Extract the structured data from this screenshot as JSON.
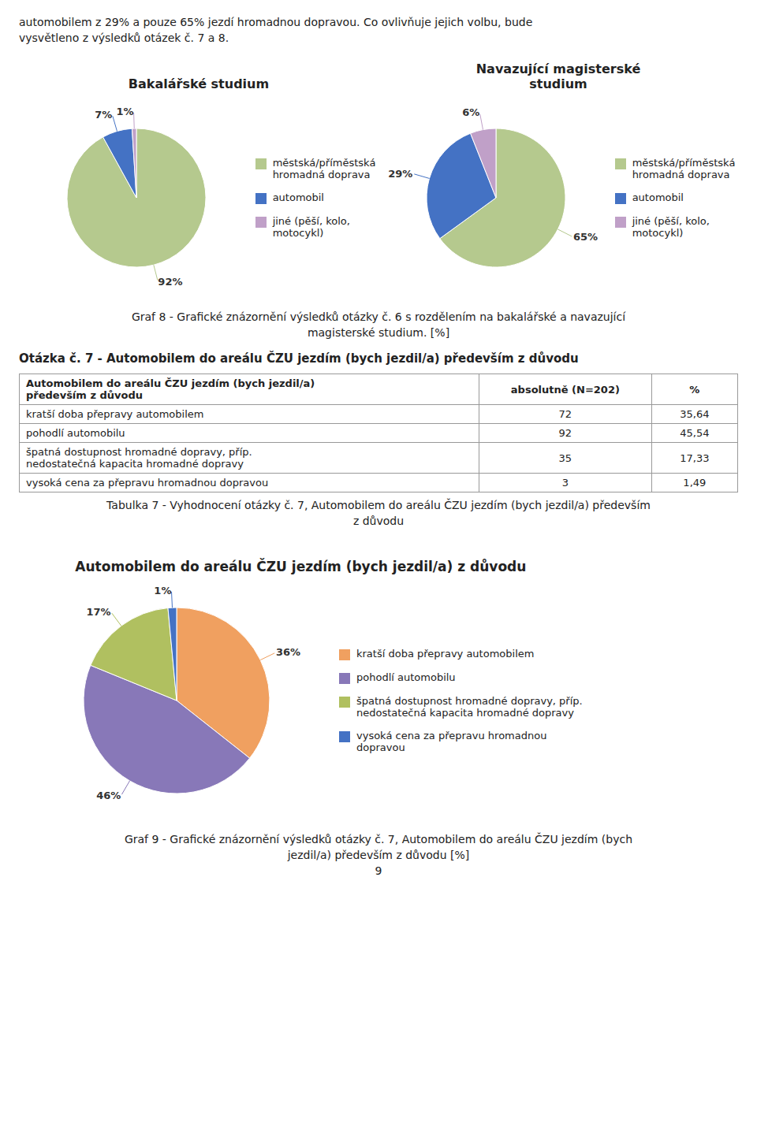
{
  "chart_data": [
    {
      "type": "text",
      "annotations": [
        "automobilem z 29% a pouze 65% jezdí hromadnou dopravou. Co ovlivňuje jejich volbu, bude",
        "vysvětleno z výsledků otázek č. 7 a 8."
      ]
    },
    {
      "type": "pie",
      "title": "Bakalářské studium",
      "categories": [
        "městská/příměstská\nhromadná doprava",
        "automobil",
        "jiné (pěší, kolo,\nmotocykl)"
      ],
      "values": [
        92,
        7,
        1
      ],
      "value_labels": [
        "92%",
        "7%",
        "1%"
      ],
      "colors": [
        "#b5c98e",
        "#4472c4",
        "#c0a0c8"
      ],
      "data_labels": true,
      "legend": "right"
    },
    {
      "type": "pie",
      "title": "Navazující magisterské\nstudium",
      "categories": [
        "městská/příměstská\nhromadná doprava",
        "automobil",
        "jiné (pěší, kolo,\nmotocykl)"
      ],
      "values": [
        65,
        29,
        6
      ],
      "value_labels": [
        "65%",
        "29%",
        "6%"
      ],
      "colors": [
        "#b5c98e",
        "#4472c4",
        "#c0a0c8"
      ],
      "data_labels": true,
      "legend": "right",
      "annotations": [
        "Graf 8 - Grafické znázornění výsledků otázky č. 6 s rozdělením na bakalářské a navazující",
        "magisterské studium. [%]"
      ]
    },
    {
      "type": "table",
      "title": "Otázka č. 7 - Automobilem do areálu ČZU jezdím (bych jezdil/a) především z důvodu",
      "columns": [
        "Automobilem do areálu ČZU jezdím (bych jezdil/a)\npředevším z důvodu",
        "absolutně (N=202)",
        "%"
      ],
      "rows": [
        [
          "kratší doba přepravy automobilem",
          "72",
          "35,64"
        ],
        [
          "pohodlí automobilu",
          "92",
          "45,54"
        ],
        [
          "špatná dostupnost hromadné dopravy, příp.\nnedostatečná kapacita hromadné dopravy",
          "35",
          "17,33"
        ],
        [
          "vysoká cena za přepravu hromadnou dopravou",
          "3",
          "1,49"
        ]
      ],
      "annotations": [
        "Tabulka 7 - Vyhodnocení otázky č. 7, Automobilem do areálu ČZU jezdím (bych jezdil/a) především",
        "z důvodu"
      ]
    },
    {
      "type": "pie",
      "title": "Automobilem do areálu ČZU jezdím (bych jezdil/a) z důvodu",
      "categories": [
        "kratší doba přepravy automobilem",
        "pohodlí automobilu",
        "špatná dostupnost hromadné dopravy, příp.\nnedostatečná kapacita hromadné dopravy",
        "vysoká cena za přepravu hromadnou\ndopravou"
      ],
      "values": [
        35.64,
        45.54,
        17.33,
        1.49
      ],
      "value_labels": [
        "36%",
        "46%",
        "17%",
        "1%"
      ],
      "colors": [
        "#f0a060",
        "#8878b8",
        "#b0c060",
        "#4472c4"
      ],
      "data_labels": true,
      "legend": "right",
      "annotations": [
        "Graf 9 - Grafické znázornění výsledků otázky č. 7, Automobilem do areálu ČZU jezdím (bych",
        "jezdil/a) především z důvodu [%]",
        "9"
      ]
    }
  ]
}
